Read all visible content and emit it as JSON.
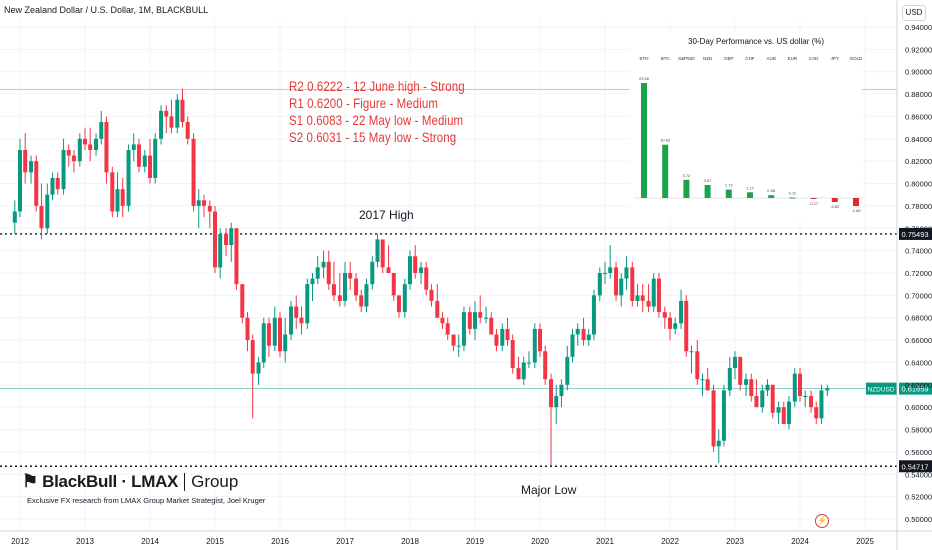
{
  "header": {
    "title": "New Zealand Dollar / U.S. Dollar, 1M, BLACKBULL",
    "currency_button": "USD"
  },
  "annotations": {
    "levels": [
      "R2 0.6222 - 12 June high - Strong",
      "R1 0.6200 - Figure - Medium",
      "S1 0.6083 - 22 May low - Medium",
      "S2 0.6031 - 15 May low - Strong"
    ],
    "high_label": "2017 High",
    "low_label": "Major Low"
  },
  "branding": {
    "logo_text": "BlackBull · LMAX",
    "logo_group": "Group",
    "tagline": "Exclusive FX research from LMAX Group Market Strategist, Joel Kruger"
  },
  "colors": {
    "up": "#089981",
    "down": "#f23645",
    "level_text": "#e53935",
    "current_line": "#089981"
  },
  "chart_data": [
    {
      "type": "candlestick",
      "symbol": "NZDUSD",
      "interval": "1M",
      "x_ticks": [
        "2012",
        "2013",
        "2014",
        "2015",
        "2016",
        "2017",
        "2018",
        "2019",
        "2020",
        "2021",
        "2022",
        "2023",
        "2024",
        "2025"
      ],
      "y_ticks": [
        "0.94000",
        "0.92000",
        "0.90000",
        "0.88000",
        "0.86000",
        "0.84000",
        "0.82000",
        "0.80000",
        "0.78000",
        "0.76000",
        "0.74000",
        "0.72000",
        "0.70000",
        "0.68000",
        "0.66000",
        "0.64000",
        "0.62000",
        "0.60000",
        "0.58000",
        "0.56000",
        "0.54000",
        "0.52000",
        "0.50000"
      ],
      "ylim": [
        0.5,
        0.94
      ],
      "current_price": {
        "label": "NZDUSD",
        "value": "0.61659"
      },
      "levels": [
        {
          "value": "0.75493",
          "style": "dotted"
        },
        {
          "value": "0.54717",
          "style": "dotted"
        }
      ],
      "candles": [
        [
          2011.92,
          0.765,
          0.785,
          0.755,
          0.775
        ],
        [
          2012.0,
          0.775,
          0.84,
          0.77,
          0.83
        ],
        [
          2012.08,
          0.83,
          0.845,
          0.8,
          0.81
        ],
        [
          2012.17,
          0.81,
          0.825,
          0.8,
          0.82
        ],
        [
          2012.25,
          0.82,
          0.825,
          0.775,
          0.78
        ],
        [
          2012.33,
          0.78,
          0.8,
          0.75,
          0.76
        ],
        [
          2012.42,
          0.76,
          0.8,
          0.755,
          0.79
        ],
        [
          2012.5,
          0.79,
          0.81,
          0.785,
          0.805
        ],
        [
          2012.58,
          0.805,
          0.81,
          0.79,
          0.795
        ],
        [
          2012.67,
          0.795,
          0.84,
          0.79,
          0.83
        ],
        [
          2012.75,
          0.83,
          0.835,
          0.815,
          0.825
        ],
        [
          2012.83,
          0.825,
          0.83,
          0.81,
          0.82
        ],
        [
          2012.92,
          0.82,
          0.845,
          0.815,
          0.84
        ],
        [
          2013.0,
          0.84,
          0.85,
          0.83,
          0.835
        ],
        [
          2013.08,
          0.835,
          0.85,
          0.82,
          0.83
        ],
        [
          2013.17,
          0.83,
          0.845,
          0.825,
          0.84
        ],
        [
          2013.25,
          0.84,
          0.865,
          0.835,
          0.855
        ],
        [
          2013.33,
          0.855,
          0.86,
          0.8,
          0.81
        ],
        [
          2013.42,
          0.81,
          0.815,
          0.77,
          0.775
        ],
        [
          2013.5,
          0.775,
          0.81,
          0.77,
          0.795
        ],
        [
          2013.58,
          0.795,
          0.805,
          0.77,
          0.78
        ],
        [
          2013.67,
          0.78,
          0.835,
          0.775,
          0.83
        ],
        [
          2013.75,
          0.83,
          0.845,
          0.82,
          0.835
        ],
        [
          2013.83,
          0.835,
          0.84,
          0.81,
          0.815
        ],
        [
          2013.92,
          0.815,
          0.83,
          0.81,
          0.825
        ],
        [
          2014.0,
          0.825,
          0.84,
          0.8,
          0.805
        ],
        [
          2014.08,
          0.805,
          0.845,
          0.8,
          0.84
        ],
        [
          2014.17,
          0.84,
          0.87,
          0.835,
          0.865
        ],
        [
          2014.25,
          0.865,
          0.87,
          0.845,
          0.86
        ],
        [
          2014.33,
          0.86,
          0.875,
          0.845,
          0.85
        ],
        [
          2014.42,
          0.85,
          0.88,
          0.845,
          0.875
        ],
        [
          2014.5,
          0.875,
          0.885,
          0.85,
          0.855
        ],
        [
          2014.58,
          0.855,
          0.86,
          0.835,
          0.84
        ],
        [
          2014.67,
          0.84,
          0.845,
          0.775,
          0.78
        ],
        [
          2014.75,
          0.78,
          0.795,
          0.76,
          0.785
        ],
        [
          2014.83,
          0.785,
          0.79,
          0.77,
          0.78
        ],
        [
          2014.92,
          0.78,
          0.785,
          0.76,
          0.775
        ],
        [
          2015.0,
          0.775,
          0.78,
          0.72,
          0.725
        ],
        [
          2015.08,
          0.725,
          0.76,
          0.715,
          0.755
        ],
        [
          2015.17,
          0.755,
          0.76,
          0.735,
          0.745
        ],
        [
          2015.25,
          0.745,
          0.765,
          0.73,
          0.76
        ],
        [
          2015.33,
          0.76,
          0.76,
          0.705,
          0.71
        ],
        [
          2015.42,
          0.71,
          0.71,
          0.675,
          0.68
        ],
        [
          2015.5,
          0.68,
          0.685,
          0.65,
          0.66
        ],
        [
          2015.58,
          0.66,
          0.665,
          0.59,
          0.63
        ],
        [
          2015.67,
          0.63,
          0.645,
          0.62,
          0.64
        ],
        [
          2015.75,
          0.64,
          0.68,
          0.635,
          0.675
        ],
        [
          2015.83,
          0.675,
          0.68,
          0.645,
          0.655
        ],
        [
          2015.92,
          0.655,
          0.69,
          0.65,
          0.68
        ],
        [
          2016.0,
          0.68,
          0.685,
          0.645,
          0.65
        ],
        [
          2016.08,
          0.65,
          0.68,
          0.64,
          0.665
        ],
        [
          2016.17,
          0.665,
          0.695,
          0.66,
          0.69
        ],
        [
          2016.25,
          0.69,
          0.7,
          0.67,
          0.68
        ],
        [
          2016.33,
          0.68,
          0.69,
          0.665,
          0.675
        ],
        [
          2016.42,
          0.675,
          0.715,
          0.67,
          0.71
        ],
        [
          2016.5,
          0.71,
          0.72,
          0.695,
          0.715
        ],
        [
          2016.58,
          0.715,
          0.735,
          0.71,
          0.725
        ],
        [
          2016.67,
          0.725,
          0.74,
          0.715,
          0.73
        ],
        [
          2016.75,
          0.73,
          0.74,
          0.705,
          0.71
        ],
        [
          2016.83,
          0.71,
          0.73,
          0.695,
          0.7
        ],
        [
          2016.92,
          0.7,
          0.72,
          0.69,
          0.695
        ],
        [
          2017.0,
          0.695,
          0.73,
          0.69,
          0.72
        ],
        [
          2017.08,
          0.72,
          0.73,
          0.705,
          0.715
        ],
        [
          2017.17,
          0.715,
          0.72,
          0.695,
          0.7
        ],
        [
          2017.25,
          0.7,
          0.705,
          0.685,
          0.69
        ],
        [
          2017.33,
          0.69,
          0.715,
          0.685,
          0.71
        ],
        [
          2017.42,
          0.71,
          0.735,
          0.705,
          0.73
        ],
        [
          2017.5,
          0.73,
          0.755,
          0.725,
          0.75
        ],
        [
          2017.58,
          0.75,
          0.75,
          0.72,
          0.725
        ],
        [
          2017.67,
          0.725,
          0.745,
          0.72,
          0.72
        ],
        [
          2017.75,
          0.72,
          0.72,
          0.695,
          0.7
        ],
        [
          2017.83,
          0.7,
          0.7,
          0.68,
          0.685
        ],
        [
          2017.92,
          0.685,
          0.715,
          0.68,
          0.71
        ],
        [
          2018.0,
          0.71,
          0.74,
          0.705,
          0.735
        ],
        [
          2018.08,
          0.735,
          0.745,
          0.715,
          0.72
        ],
        [
          2018.17,
          0.72,
          0.73,
          0.71,
          0.725
        ],
        [
          2018.25,
          0.725,
          0.73,
          0.7,
          0.705
        ],
        [
          2018.33,
          0.705,
          0.71,
          0.69,
          0.695
        ],
        [
          2018.42,
          0.695,
          0.71,
          0.68,
          0.68
        ],
        [
          2018.5,
          0.68,
          0.685,
          0.67,
          0.675
        ],
        [
          2018.58,
          0.675,
          0.68,
          0.66,
          0.665
        ],
        [
          2018.67,
          0.665,
          0.665,
          0.65,
          0.655
        ],
        [
          2018.75,
          0.655,
          0.665,
          0.645,
          0.655
        ],
        [
          2018.83,
          0.655,
          0.69,
          0.65,
          0.685
        ],
        [
          2018.92,
          0.685,
          0.69,
          0.665,
          0.67
        ],
        [
          2019.0,
          0.67,
          0.695,
          0.66,
          0.685
        ],
        [
          2019.08,
          0.685,
          0.7,
          0.675,
          0.68
        ],
        [
          2019.17,
          0.68,
          0.69,
          0.675,
          0.68
        ],
        [
          2019.25,
          0.68,
          0.685,
          0.665,
          0.665
        ],
        [
          2019.33,
          0.665,
          0.67,
          0.65,
          0.655
        ],
        [
          2019.42,
          0.655,
          0.675,
          0.65,
          0.67
        ],
        [
          2019.5,
          0.67,
          0.68,
          0.655,
          0.66
        ],
        [
          2019.58,
          0.66,
          0.665,
          0.63,
          0.635
        ],
        [
          2019.67,
          0.635,
          0.645,
          0.625,
          0.625
        ],
        [
          2019.75,
          0.625,
          0.645,
          0.62,
          0.64
        ],
        [
          2019.83,
          0.64,
          0.65,
          0.635,
          0.64
        ],
        [
          2019.92,
          0.64,
          0.675,
          0.635,
          0.67
        ],
        [
          2020.0,
          0.67,
          0.675,
          0.645,
          0.65
        ],
        [
          2020.08,
          0.65,
          0.655,
          0.62,
          0.625
        ],
        [
          2020.17,
          0.625,
          0.63,
          0.548,
          0.6
        ],
        [
          2020.25,
          0.6,
          0.62,
          0.585,
          0.61
        ],
        [
          2020.33,
          0.61,
          0.625,
          0.6,
          0.62
        ],
        [
          2020.42,
          0.62,
          0.655,
          0.615,
          0.645
        ],
        [
          2020.5,
          0.645,
          0.67,
          0.64,
          0.665
        ],
        [
          2020.58,
          0.665,
          0.675,
          0.655,
          0.67
        ],
        [
          2020.67,
          0.67,
          0.68,
          0.655,
          0.66
        ],
        [
          2020.75,
          0.66,
          0.67,
          0.655,
          0.665
        ],
        [
          2020.83,
          0.665,
          0.705,
          0.66,
          0.7
        ],
        [
          2020.92,
          0.7,
          0.725,
          0.695,
          0.72
        ],
        [
          2021.0,
          0.72,
          0.73,
          0.71,
          0.72
        ],
        [
          2021.08,
          0.72,
          0.745,
          0.715,
          0.725
        ],
        [
          2021.17,
          0.725,
          0.73,
          0.695,
          0.7
        ],
        [
          2021.25,
          0.7,
          0.72,
          0.69,
          0.715
        ],
        [
          2021.33,
          0.715,
          0.735,
          0.705,
          0.725
        ],
        [
          2021.42,
          0.725,
          0.73,
          0.69,
          0.695
        ],
        [
          2021.5,
          0.695,
          0.71,
          0.69,
          0.7
        ],
        [
          2021.58,
          0.7,
          0.71,
          0.685,
          0.695
        ],
        [
          2021.67,
          0.695,
          0.71,
          0.685,
          0.69
        ],
        [
          2021.75,
          0.69,
          0.72,
          0.685,
          0.715
        ],
        [
          2021.83,
          0.715,
          0.72,
          0.68,
          0.685
        ],
        [
          2021.92,
          0.685,
          0.69,
          0.67,
          0.68
        ],
        [
          2022.0,
          0.68,
          0.685,
          0.66,
          0.67
        ],
        [
          2022.08,
          0.67,
          0.68,
          0.665,
          0.675
        ],
        [
          2022.17,
          0.675,
          0.705,
          0.67,
          0.695
        ],
        [
          2022.25,
          0.695,
          0.7,
          0.645,
          0.65
        ],
        [
          2022.33,
          0.65,
          0.655,
          0.63,
          0.65
        ],
        [
          2022.42,
          0.65,
          0.66,
          0.62,
          0.625
        ],
        [
          2022.5,
          0.625,
          0.63,
          0.61,
          0.625
        ],
        [
          2022.58,
          0.625,
          0.635,
          0.615,
          0.615
        ],
        [
          2022.67,
          0.615,
          0.62,
          0.56,
          0.565
        ],
        [
          2022.75,
          0.565,
          0.58,
          0.55,
          0.57
        ],
        [
          2022.83,
          0.57,
          0.62,
          0.565,
          0.615
        ],
        [
          2022.92,
          0.615,
          0.645,
          0.61,
          0.635
        ],
        [
          2023.0,
          0.635,
          0.65,
          0.625,
          0.645
        ],
        [
          2023.08,
          0.645,
          0.645,
          0.615,
          0.62
        ],
        [
          2023.17,
          0.62,
          0.63,
          0.61,
          0.625
        ],
        [
          2023.25,
          0.625,
          0.63,
          0.605,
          0.61
        ],
        [
          2023.33,
          0.61,
          0.625,
          0.6,
          0.6
        ],
        [
          2023.42,
          0.6,
          0.62,
          0.595,
          0.615
        ],
        [
          2023.5,
          0.615,
          0.625,
          0.61,
          0.62
        ],
        [
          2023.58,
          0.62,
          0.62,
          0.59,
          0.595
        ],
        [
          2023.67,
          0.595,
          0.605,
          0.585,
          0.6
        ],
        [
          2023.75,
          0.6,
          0.605,
          0.585,
          0.585
        ],
        [
          2023.83,
          0.585,
          0.61,
          0.58,
          0.605
        ],
        [
          2023.92,
          0.605,
          0.635,
          0.6,
          0.63
        ],
        [
          2024.0,
          0.63,
          0.635,
          0.605,
          0.61
        ],
        [
          2024.08,
          0.61,
          0.615,
          0.6,
          0.61
        ],
        [
          2024.17,
          0.61,
          0.615,
          0.595,
          0.6
        ],
        [
          2024.25,
          0.6,
          0.605,
          0.585,
          0.59
        ],
        [
          2024.33,
          0.59,
          0.62,
          0.585,
          0.615
        ],
        [
          2024.42,
          0.615,
          0.62,
          0.61,
          0.617
        ]
      ]
    },
    {
      "type": "bar",
      "title": "30-Day Performance vs. US dollar (%)",
      "categories": [
        "ETH",
        "BTC",
        "S&P500",
        "NZD",
        "GBP",
        "CHF",
        "AUD",
        "EUR",
        "CAD",
        "JPY",
        "GOLD"
      ],
      "values": [
        23.56,
        10.92,
        3.72,
        2.67,
        1.72,
        1.17,
        0.58,
        0.11,
        -0.17,
        -0.82,
        -1.66
      ]
    }
  ]
}
